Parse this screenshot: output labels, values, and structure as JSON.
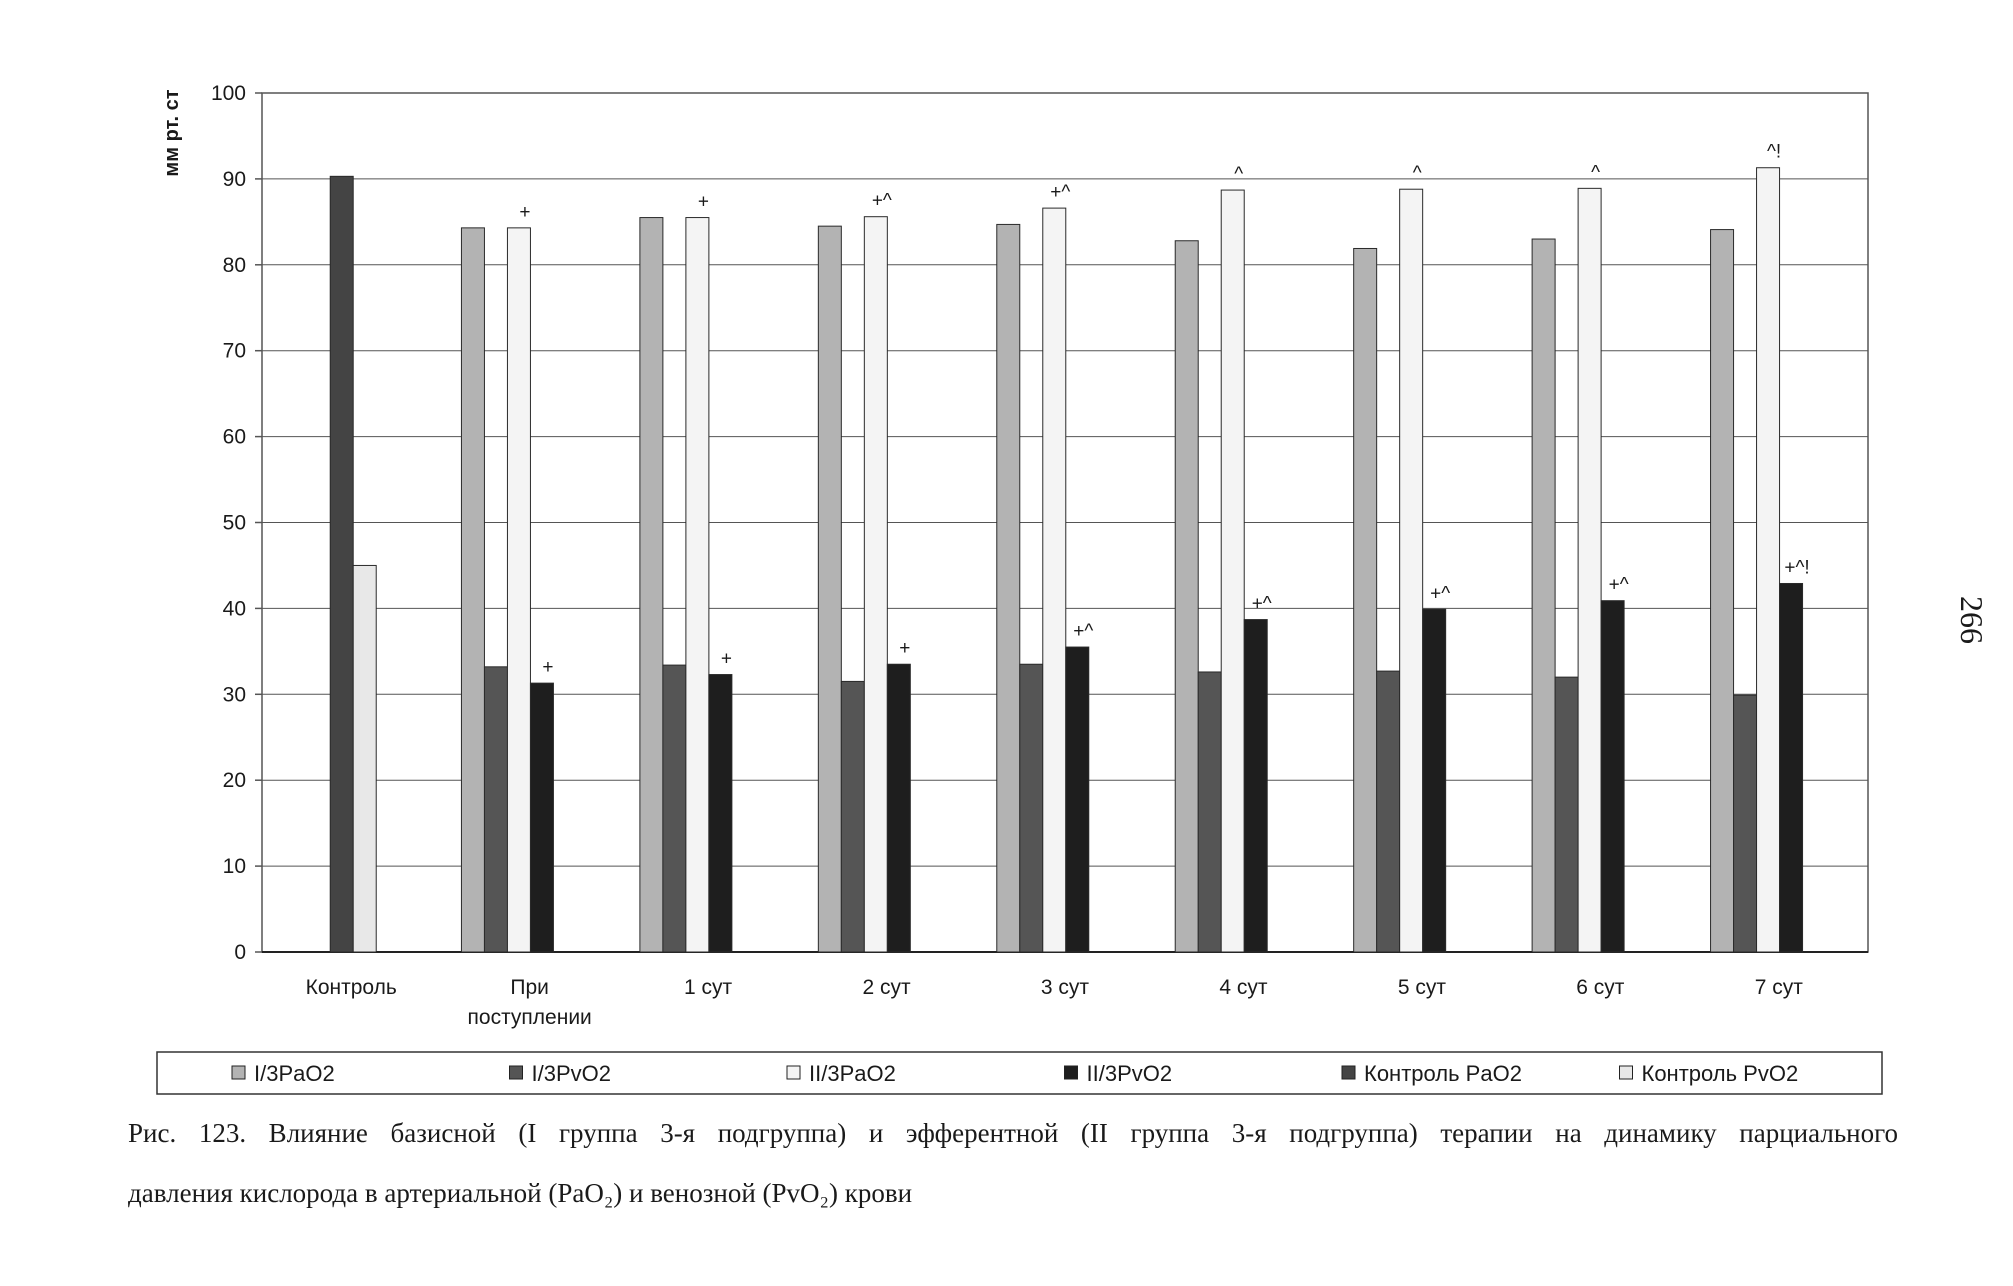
{
  "page_number": "266",
  "caption": {
    "line1": "Рис. 123. Влияние базисной (I группа 3-я подгруппа) и эфферентной (II группа 3-я подгруппа) терапии на динамику парциального",
    "line2": "давления кислорода в артериальной (PaO₂) и венозной (PvO₂) крови"
  },
  "colors": {
    "I_PaO2": "#b3b3b3",
    "I_PvO2": "#555555",
    "II_PaO2": "#f4f4f4",
    "II_PvO2": "#1e1e1e",
    "Control_PaO2": "#444444",
    "Control_PvO2": "#e8e8e8",
    "grid": "#555555"
  },
  "chart_data": {
    "type": "bar",
    "title": "",
    "xlabel": "",
    "ylabel": "мм рт. ст",
    "ylim": [
      0,
      100
    ],
    "yticks": [
      0,
      10,
      20,
      30,
      40,
      50,
      60,
      70,
      80,
      90,
      100
    ],
    "grid": true,
    "legend_position": "bottom",
    "categories": [
      "Контроль",
      "При поступлении",
      "1 сут",
      "2 сут",
      "3 сут",
      "4 сут",
      "5 сут",
      "6 сут",
      "7 сут"
    ],
    "category_lines": [
      [
        "Контроль"
      ],
      [
        "При",
        "поступлении"
      ],
      [
        "1 сут"
      ],
      [
        "2 сут"
      ],
      [
        "3 сут"
      ],
      [
        "4 сут"
      ],
      [
        "5 сут"
      ],
      [
        "6 сут"
      ],
      [
        "7 сут"
      ]
    ],
    "series": [
      {
        "name": "I/3PaO2",
        "key": "I_PaO2",
        "values": [
          null,
          84.3,
          85.5,
          84.5,
          84.7,
          82.8,
          81.9,
          83.0,
          84.1
        ]
      },
      {
        "name": "I/3PvO2",
        "key": "I_PvO2",
        "values": [
          null,
          33.2,
          33.4,
          31.5,
          33.5,
          32.6,
          32.7,
          32.0,
          29.9
        ]
      },
      {
        "name": "II/3PaO2",
        "key": "II_PaO2",
        "values": [
          null,
          84.3,
          85.5,
          85.6,
          86.6,
          88.7,
          88.8,
          88.9,
          91.3
        ],
        "annotations": [
          "",
          "+",
          "+",
          "+^",
          "+^",
          "^",
          "^",
          "^",
          "^!"
        ]
      },
      {
        "name": "II/3PvO2",
        "key": "II_PvO2",
        "values": [
          null,
          31.3,
          32.3,
          33.5,
          35.5,
          38.7,
          39.9,
          40.9,
          42.9
        ],
        "annotations": [
          "",
          "+",
          "+",
          "+",
          "+^",
          "+^",
          "+^",
          "+^",
          "+^!"
        ]
      },
      {
        "name": "Контроль PaO2",
        "key": "Control_PaO2",
        "values": [
          90.3,
          null,
          null,
          null,
          null,
          null,
          null,
          null,
          null
        ]
      },
      {
        "name": "Контроль PvO2",
        "key": "Control_PvO2",
        "values": [
          45.0,
          null,
          null,
          null,
          null,
          null,
          null,
          null,
          null
        ]
      }
    ]
  }
}
